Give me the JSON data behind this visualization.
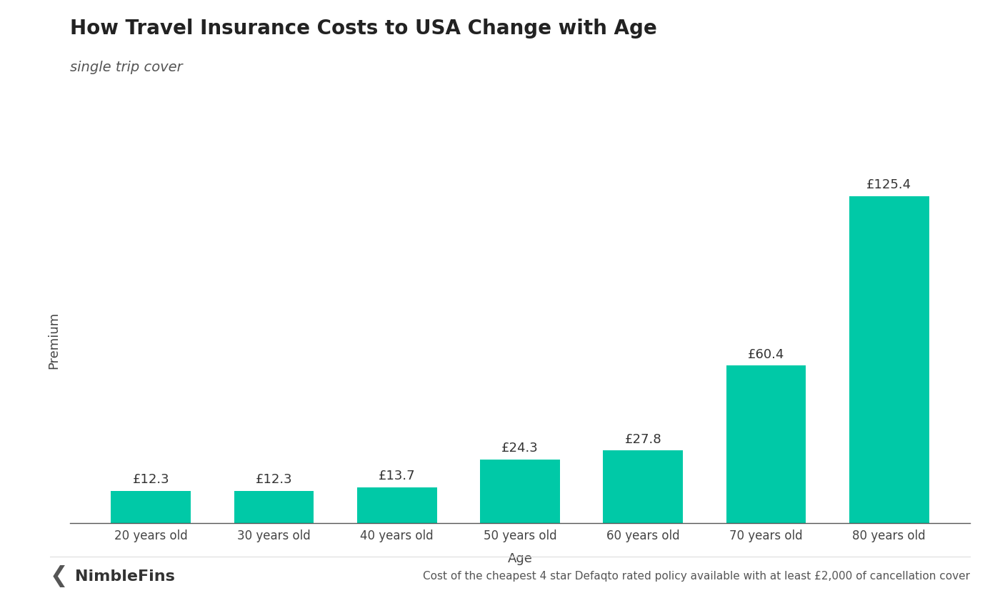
{
  "title": "How Travel Insurance Costs to USA Change with Age",
  "subtitle": "single trip cover",
  "categories": [
    "20 years old",
    "30 years old",
    "40 years old",
    "50 years old",
    "60 years old",
    "70 years old",
    "80 years old"
  ],
  "values": [
    12.3,
    12.3,
    13.7,
    24.3,
    27.8,
    60.4,
    125.4
  ],
  "labels": [
    "£12.3",
    "£12.3",
    "£13.7",
    "£24.3",
    "£27.8",
    "£60.4",
    "£125.4"
  ],
  "bar_color": "#00C9A7",
  "xlabel": "Age",
  "ylabel": "Premium",
  "background_color": "#ffffff",
  "footer_chevron": "❮",
  "footer_brand": "NimbleFins",
  "footer_note": "Cost of the cheapest 4 star Defaqto rated policy available with at least £2,000 of cancellation cover",
  "title_fontsize": 20,
  "subtitle_fontsize": 14,
  "label_fontsize": 13,
  "axis_label_fontsize": 13,
  "tick_fontsize": 12,
  "footer_brand_fontsize": 16,
  "footer_note_fontsize": 11,
  "ylim": [
    0,
    140
  ]
}
